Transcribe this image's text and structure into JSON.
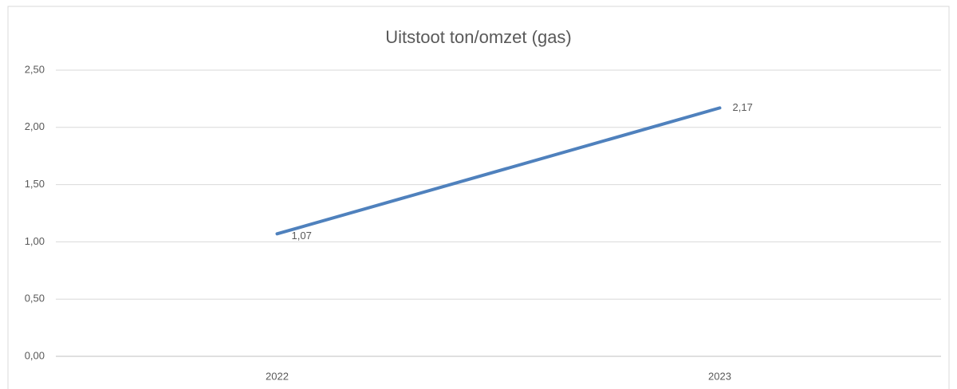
{
  "chart_data": {
    "type": "line",
    "title": "Uitstoot ton/omzet (gas)",
    "categories": [
      "2022",
      "2023"
    ],
    "values": [
      1.07,
      2.17
    ],
    "value_labels": [
      "1,07",
      "2,17"
    ],
    "color": "#4f81bd",
    "ylim": [
      0,
      2.5
    ],
    "yticks": [
      {
        "value": 0,
        "label": "0,00"
      },
      {
        "value": 0.5,
        "label": "0,50"
      },
      {
        "value": 1,
        "label": "1,00"
      },
      {
        "value": 1.5,
        "label": "1,50"
      },
      {
        "value": 2,
        "label": "2,00"
      },
      {
        "value": 2.5,
        "label": "2,50"
      }
    ],
    "grid": true
  }
}
